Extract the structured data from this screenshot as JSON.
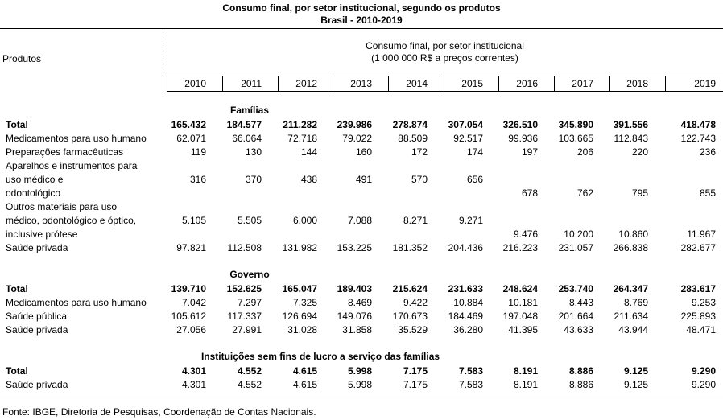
{
  "title_line1": "Consumo final, por setor institucional, segundo os produtos",
  "title_line2": "Brasil - 2010-2019",
  "header": {
    "produtos": "Produtos",
    "group_line1": "Consumo final, por setor institucional",
    "group_line2": "(1 000 000 R$ a preços correntes)"
  },
  "years": [
    "2010",
    "2011",
    "2012",
    "2013",
    "2014",
    "2015",
    "2016",
    "2017",
    "2018",
    "2019"
  ],
  "sections": [
    {
      "name": "Famílias",
      "rows": [
        {
          "label": [
            "Total"
          ],
          "bold": true,
          "values": [
            "165.432",
            "184.577",
            "211.282",
            "239.986",
            "278.874",
            "307.054",
            "326.510",
            "345.890",
            "391.556",
            "418.478"
          ]
        },
        {
          "label": [
            "Medicamentos para uso humano"
          ],
          "values": [
            "62.071",
            "66.064",
            "72.718",
            "79.022",
            "88.509",
            "92.517",
            "99.936",
            "103.665",
            "112.843",
            "122.743"
          ]
        },
        {
          "label": [
            "Preparações farmacêuticas"
          ],
          "values": [
            "119",
            "130",
            "144",
            "160",
            "172",
            "174",
            "197",
            "206",
            "220",
            "236"
          ]
        },
        {
          "label": [
            "Aparelhos e instrumentos para",
            "uso médico e",
            "odontológico"
          ],
          "values": [
            "316",
            "370",
            "438",
            "491",
            "570",
            "656",
            "678",
            "762",
            "795",
            "855"
          ]
        },
        {
          "label": [
            "Outros materiais para uso",
            "médico, odontológico e óptico,",
            "inclusive prótese"
          ],
          "values": [
            "5.105",
            "5.505",
            "6.000",
            "7.088",
            "8.271",
            "9.271",
            "9.476",
            "10.200",
            "10.860",
            "11.967"
          ]
        },
        {
          "label": [
            "Saúde privada"
          ],
          "values": [
            "97.821",
            "112.508",
            "131.982",
            "153.225",
            "181.352",
            "204.436",
            "216.223",
            "231.057",
            "266.838",
            "282.677"
          ]
        }
      ]
    },
    {
      "name": "Governo",
      "rows": [
        {
          "label": [
            "Total"
          ],
          "bold": true,
          "values": [
            "139.710",
            "152.625",
            "165.047",
            "189.403",
            "215.624",
            "231.633",
            "248.624",
            "253.740",
            "264.347",
            "283.617"
          ]
        },
        {
          "label": [
            "Medicamentos para uso humano"
          ],
          "values": [
            "7.042",
            "7.297",
            "7.325",
            "8.469",
            "9.422",
            "10.884",
            "10.181",
            "8.443",
            "8.769",
            "9.253"
          ]
        },
        {
          "label": [
            "Saúde pública"
          ],
          "values": [
            "105.612",
            "117.337",
            "126.694",
            "149.076",
            "170.673",
            "184.469",
            "197.048",
            "201.664",
            "211.634",
            "225.893"
          ]
        },
        {
          "label": [
            "Saúde privada"
          ],
          "values": [
            "27.056",
            "27.991",
            "31.028",
            "31.858",
            "35.529",
            "36.280",
            "41.395",
            "43.633",
            "43.944",
            "48.471"
          ]
        }
      ]
    },
    {
      "name": "Instituições sem fins de lucro a serviço das famílias",
      "rows": [
        {
          "label": [
            "Total"
          ],
          "bold": true,
          "values": [
            "4.301",
            "4.552",
            "4.615",
            "5.998",
            "7.175",
            "7.583",
            "8.191",
            "8.886",
            "9.125",
            "9.290"
          ]
        },
        {
          "label": [
            "Saúde privada"
          ],
          "values": [
            "4.301",
            "4.552",
            "4.615",
            "5.998",
            "7.175",
            "7.583",
            "8.191",
            "8.886",
            "9.125",
            "9.290"
          ]
        }
      ]
    }
  ],
  "source": "Fonte: IBGE, Diretoria de Pesquisas, Coordenação de Contas Nacionais."
}
